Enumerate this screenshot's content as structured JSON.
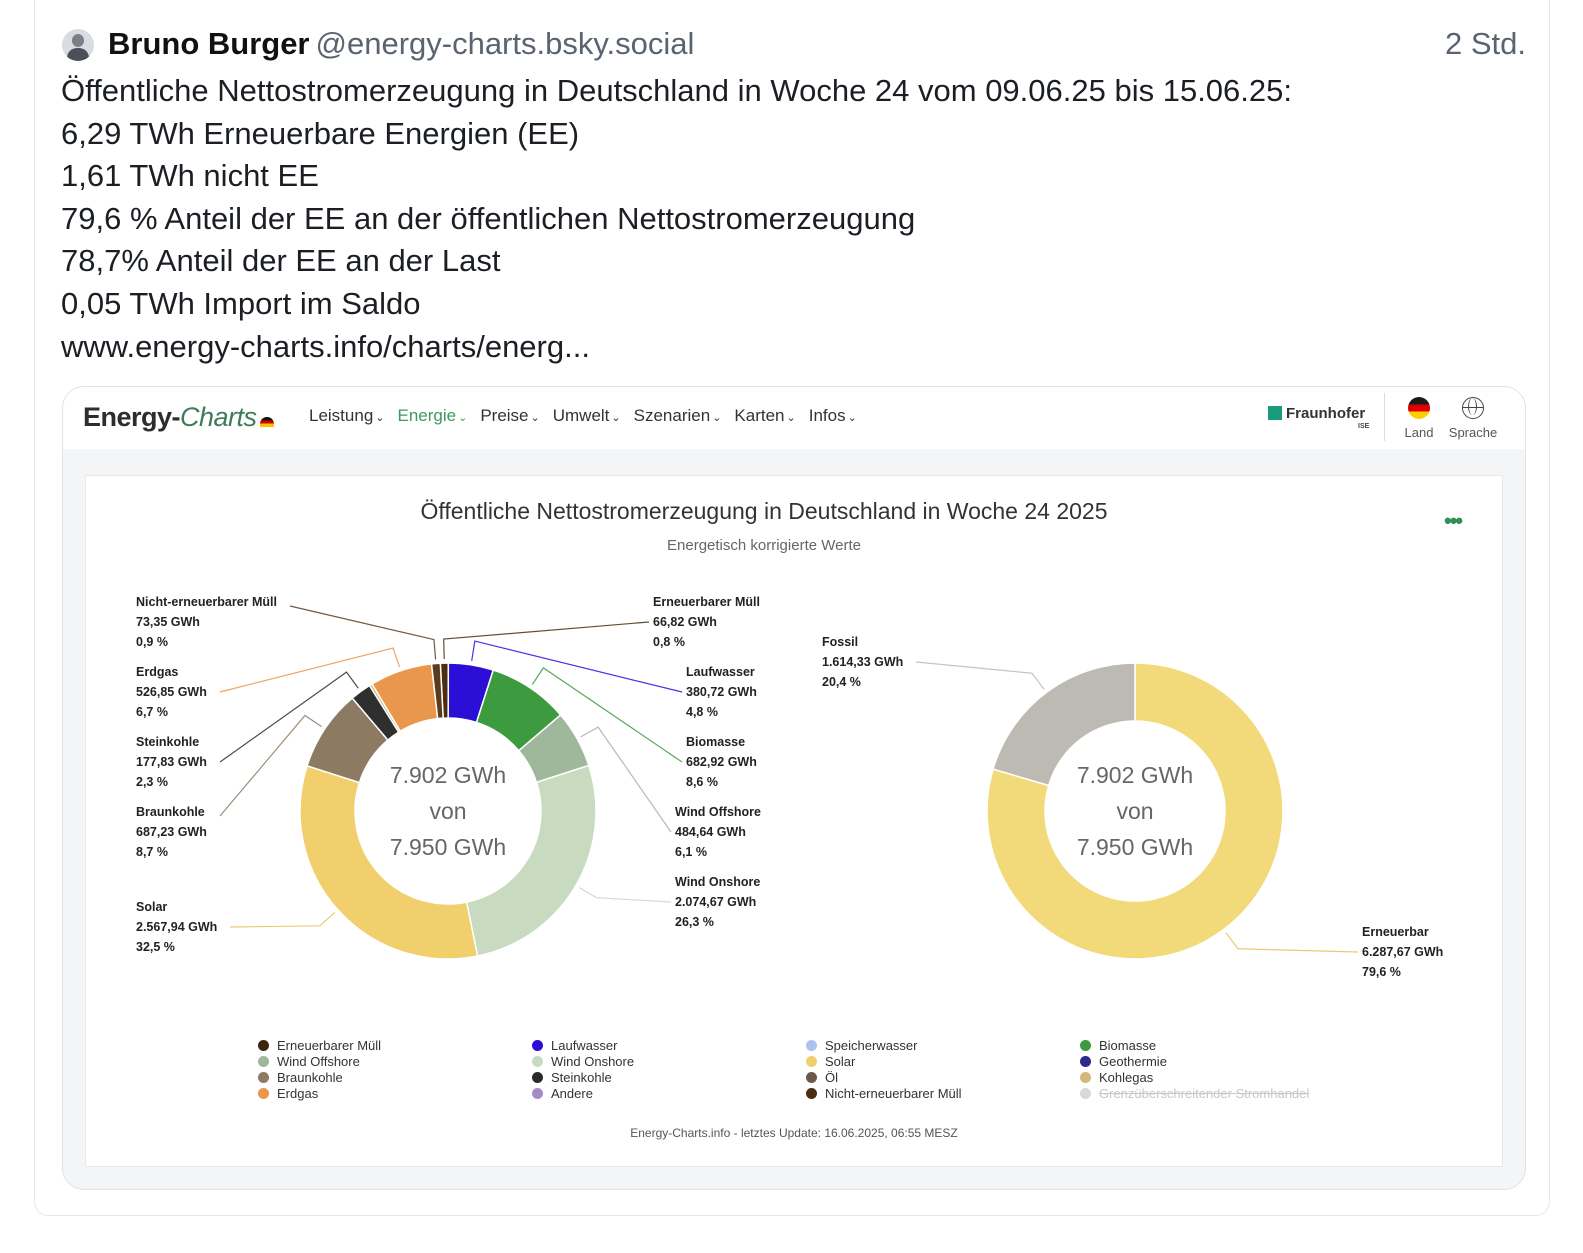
{
  "post": {
    "author_name": "Bruno Burger",
    "author_handle": "@energy-charts.bsky.social",
    "time": "2 Std.",
    "lines": [
      "Öffentliche Nettostromerzeugung in Deutschland in Woche 24 vom 09.06.25 bis 15.06.25:",
      "6,29 TWh Erneuerbare Energien (EE)",
      "1,61 TWh nicht EE",
      "79,6 % Anteil der EE an der öffentlichen Nettostromerzeugung",
      "78,7% Anteil der EE an der Last",
      "0,05 TWh Import im Saldo"
    ],
    "link": "www.energy-charts.info/charts/energ..."
  },
  "site": {
    "logo_main": "Energy-",
    "logo_italic": "Charts",
    "menu": [
      "Leistung",
      "Energie",
      "Preise",
      "Umwelt",
      "Szenarien",
      "Karten",
      "Infos"
    ],
    "active_menu": "Energie",
    "fraunhofer": "Fraunhofer",
    "fraunhofer_sub": "ISE",
    "land": "Land",
    "sprache": "Sprache",
    "credit": "Energy-Charts.info - letztes Update: 16.06.2025, 06:55 MESZ"
  },
  "chart_data": [
    {
      "type": "pie",
      "title": "Öffentliche Nettostromerzeugung in Deutschland in Woche 24 2025",
      "subtitle": "Energetisch korrigierte Werte",
      "center": [
        "7.902 GWh",
        "von",
        "7.950 GWh"
      ],
      "slices": [
        {
          "name": "Erneuerbarer Müll",
          "value": 66.82,
          "value_label": "66,82 GWh",
          "percent_label": "0,8 %",
          "color": "#4a2e12"
        },
        {
          "name": "Laufwasser",
          "value": 380.72,
          "value_label": "380,72 GWh",
          "percent_label": "4,8 %",
          "color": "#2b0fd6"
        },
        {
          "name": "Biomasse",
          "value": 682.92,
          "value_label": "682,92 GWh",
          "percent_label": "8,6 %",
          "color": "#3e9a3e"
        },
        {
          "name": "Wind Offshore",
          "value": 484.64,
          "value_label": "484,64 GWh",
          "percent_label": "6,1 %",
          "color": "#9fb79b"
        },
        {
          "name": "Wind Onshore",
          "value": 2074.67,
          "value_label": "2.074,67 GWh",
          "percent_label": "26,3 %",
          "color": "#c8dbc0"
        },
        {
          "name": "Solar",
          "value": 2567.94,
          "value_label": "2.567,94 GWh",
          "percent_label": "32,5 %",
          "color": "#f1cf6c"
        },
        {
          "name": "Braunkohle",
          "value": 687.23,
          "value_label": "687,23 GWh",
          "percent_label": "8,7 %",
          "color": "#8d7a62"
        },
        {
          "name": "Steinkohle",
          "value": 177.83,
          "value_label": "177,83 GWh",
          "percent_label": "2,3 %",
          "color": "#2f2f2f"
        },
        {
          "name": "Kohlegas",
          "value": 25,
          "value_label": "",
          "percent_label": "",
          "color": "#d4b77a"
        },
        {
          "name": "Erdgas",
          "value": 526.85,
          "value_label": "526,85 GWh",
          "percent_label": "6,7 %",
          "color": "#e8974d"
        },
        {
          "name": "Nicht-erneuerbarer Müll",
          "value": 73.35,
          "value_label": "73,35 GWh",
          "percent_label": "0,9 %",
          "color": "#5c3a1c"
        }
      ]
    },
    {
      "type": "pie",
      "center": [
        "7.902 GWh",
        "von",
        "7.950 GWh"
      ],
      "slices": [
        {
          "name": "Erneuerbar",
          "value": 6287.67,
          "value_label": "6.287,67 GWh",
          "percent_label": "79,6 %",
          "color": "#f2da7a"
        },
        {
          "name": "Fossil",
          "value": 1614.33,
          "value_label": "1.614,33 GWh",
          "percent_label": "20,4 %",
          "color": "#bdbab4"
        }
      ]
    }
  ],
  "legend": [
    [
      {
        "label": "Erneuerbarer Müll",
        "color": "#3b2410"
      },
      {
        "label": "Wind Offshore",
        "color": "#9fb79b"
      },
      {
        "label": "Braunkohle",
        "color": "#8d7a62"
      },
      {
        "label": "Erdgas",
        "color": "#e8974d"
      }
    ],
    [
      {
        "label": "Laufwasser",
        "color": "#2b0fd6"
      },
      {
        "label": "Wind Onshore",
        "color": "#c8dbc0"
      },
      {
        "label": "Steinkohle",
        "color": "#2a2a2a"
      },
      {
        "label": "Andere",
        "color": "#a58cc6"
      }
    ],
    [
      {
        "label": "Speicherwasser",
        "color": "#aec2ef"
      },
      {
        "label": "Solar",
        "color": "#f1cf6c"
      },
      {
        "label": "Öl",
        "color": "#6b5a4b"
      },
      {
        "label": "Nicht-erneuerbarer Müll",
        "color": "#4a2e12"
      }
    ],
    [
      {
        "label": "Biomasse",
        "color": "#3e9a3e"
      },
      {
        "label": "Geothermie",
        "color": "#2a2a8a"
      },
      {
        "label": "Kohlegas",
        "color": "#d4b77a"
      },
      {
        "label": "Grenzüberschreitender Stromhandel",
        "color": "#d8d8d8",
        "disabled": true
      }
    ]
  ]
}
